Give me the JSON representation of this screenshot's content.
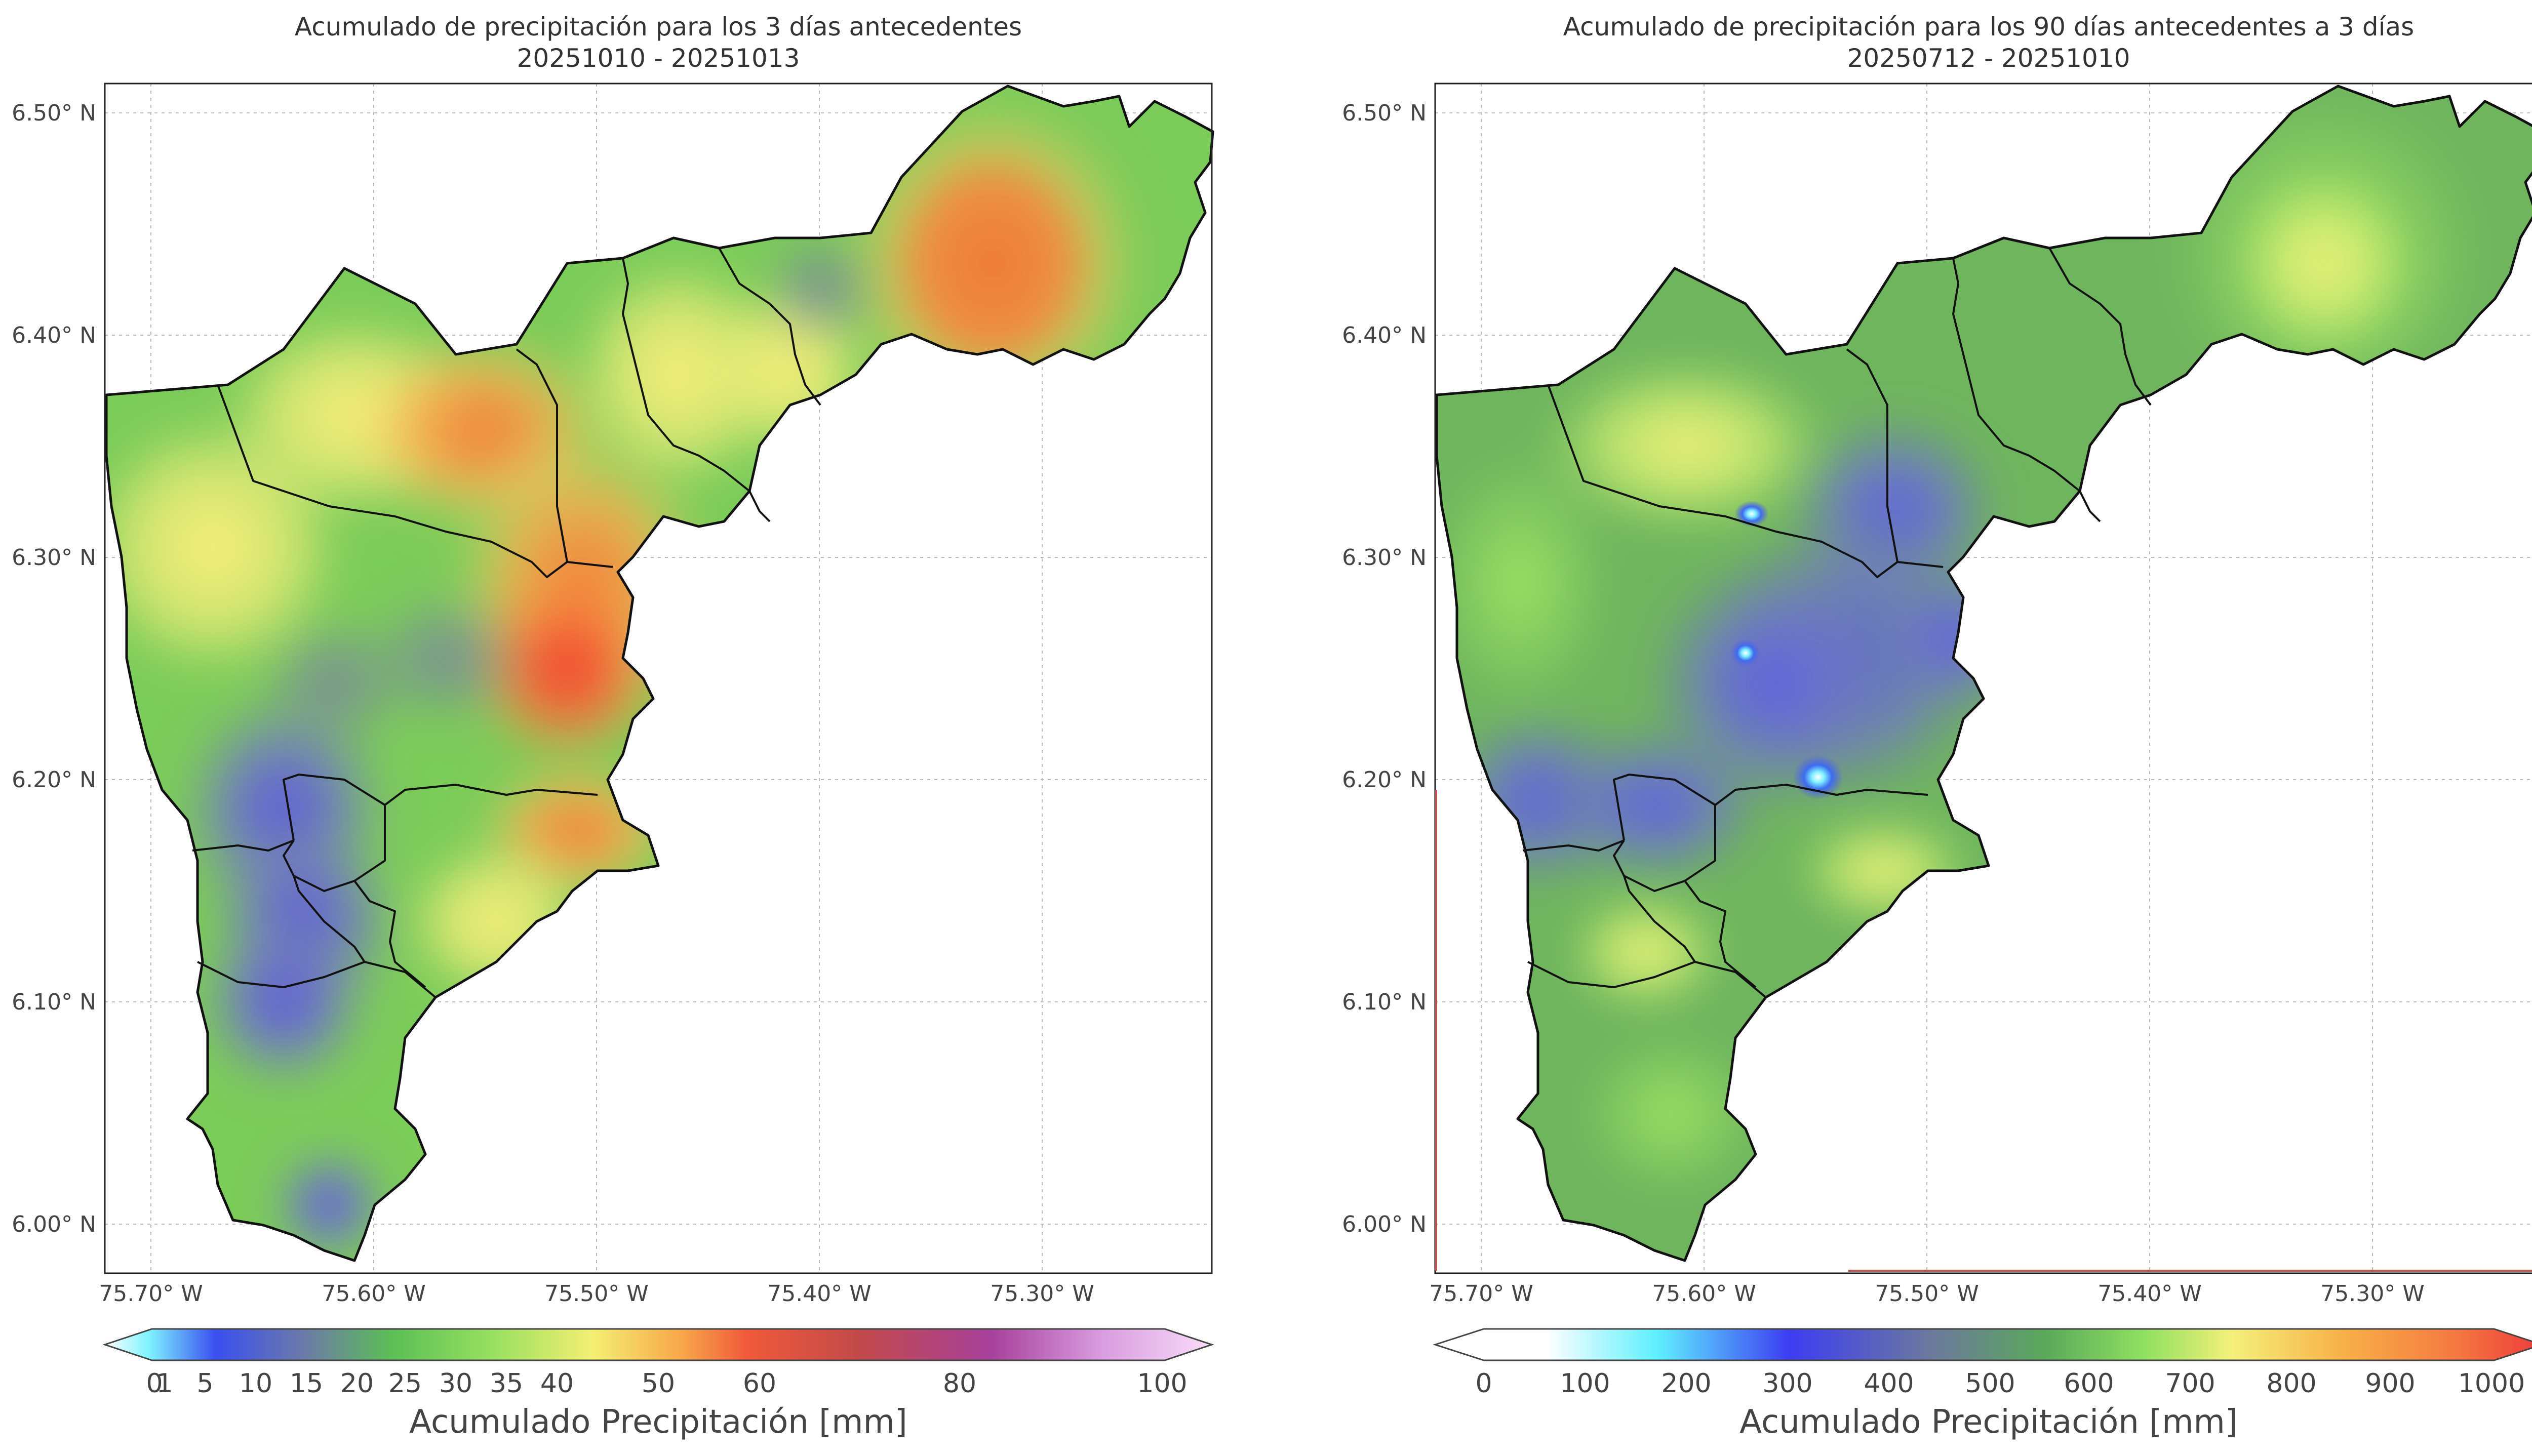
{
  "panels": [
    {
      "title_line1": "Acumulado de precipitación para los 3 días antecedentes",
      "title_line2": "20251010 - 20251013",
      "x_ticks": [
        "75.70° W",
        "75.60° W",
        "75.50° W",
        "75.40° W",
        "75.30° W"
      ],
      "y_ticks": [
        "6.50° N",
        "6.40° N",
        "6.30° N",
        "6.20° N",
        "6.10° N",
        "6.00° N"
      ],
      "colorbar_ticks": [
        "0",
        "1",
        "5",
        "10",
        "15",
        "20",
        "25",
        "30",
        "35",
        "40",
        "50",
        "60",
        "80",
        "100"
      ],
      "colorbar_label": "Acumulado Precipitación [mm]"
    },
    {
      "title_line1": "Acumulado de precipitación para los 90 días antecedentes a 3 días",
      "title_line2": "20250712 - 20251010",
      "x_ticks": [
        "75.70° W",
        "75.60° W",
        "75.50° W",
        "75.40° W",
        "75.30° W"
      ],
      "y_ticks": [
        "6.50° N",
        "6.40° N",
        "6.30° N",
        "6.20° N",
        "6.10° N",
        "6.00° N"
      ],
      "colorbar_ticks": [
        "0",
        "100",
        "200",
        "300",
        "400",
        "500",
        "600",
        "700",
        "800",
        "900",
        "1000"
      ],
      "colorbar_label": "Acumulado Precipitación [mm]"
    }
  ]
}
